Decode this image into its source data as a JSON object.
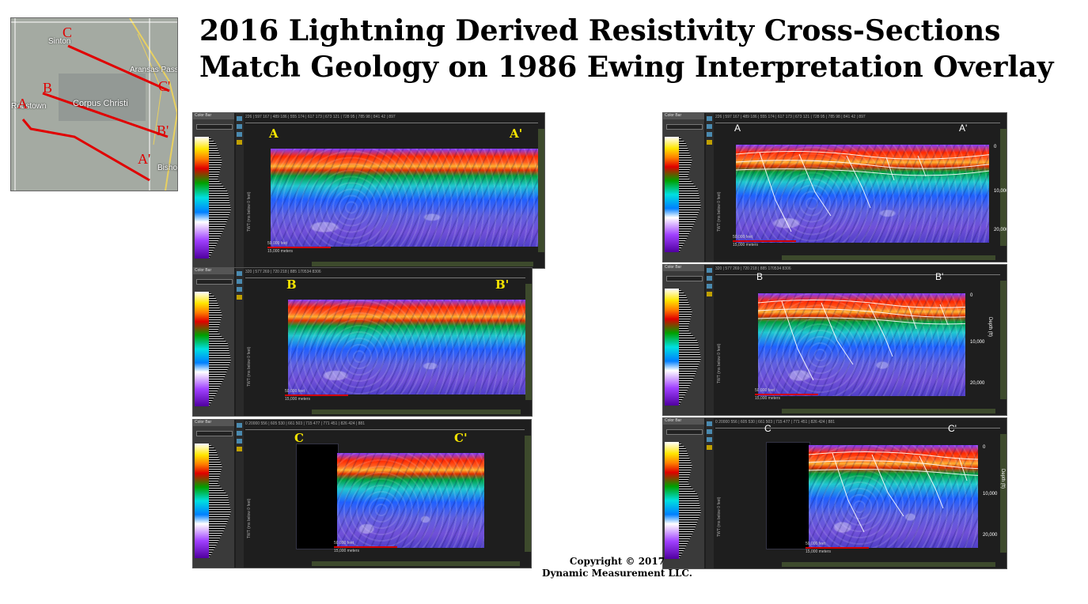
{
  "title": {
    "line1": "2016 Lightning Derived Resistivity Cross-Sections",
    "line2": "Match Geology on 1986 Ewing Interpretation Overlay"
  },
  "map": {
    "places": [
      "Sinton",
      "Aransas Pass",
      "Corpus Christi",
      "Robstown",
      "Bishop"
    ],
    "line_letters": [
      "C",
      "C'",
      "B",
      "B'",
      "A",
      "A'"
    ],
    "line_color": "#e00000"
  },
  "panel_ui": {
    "colorbar_title": "Color Bar",
    "colorbar_field": "AMPLITUD...",
    "colorbar_value1": "30",
    "colorbar_value2": "1",
    "project": "South_Texas",
    "axis_label": "TWT (ms below 0 feet)",
    "scale_feet": "50,000 feet",
    "scale_meters": "15,000 meters",
    "depth_label": "Depth (ft)",
    "depth_ticks": [
      "0",
      "10,000",
      "20,000"
    ]
  },
  "panels": [
    {
      "start": "A",
      "end": "A'",
      "ruler": "226 | 597      167 | 489      186 | 555      174 | 617      173 | 673      121 | 728      95 | 785      98 | 841      42 | 897"
    },
    {
      "start": "B",
      "end": "B'",
      "ruler": "320 | 577      269 | 720      218 | 885      170534 8306"
    },
    {
      "start": "C",
      "end": "C'",
      "ruler": "0      20000      556 | 605      530 | 661      503 | 715      477 | 771      451 | 826      424 | 881"
    }
  ],
  "copyright": {
    "line1": "Copyright  © 2017",
    "line2": "Dynamic Measurement LLC."
  }
}
